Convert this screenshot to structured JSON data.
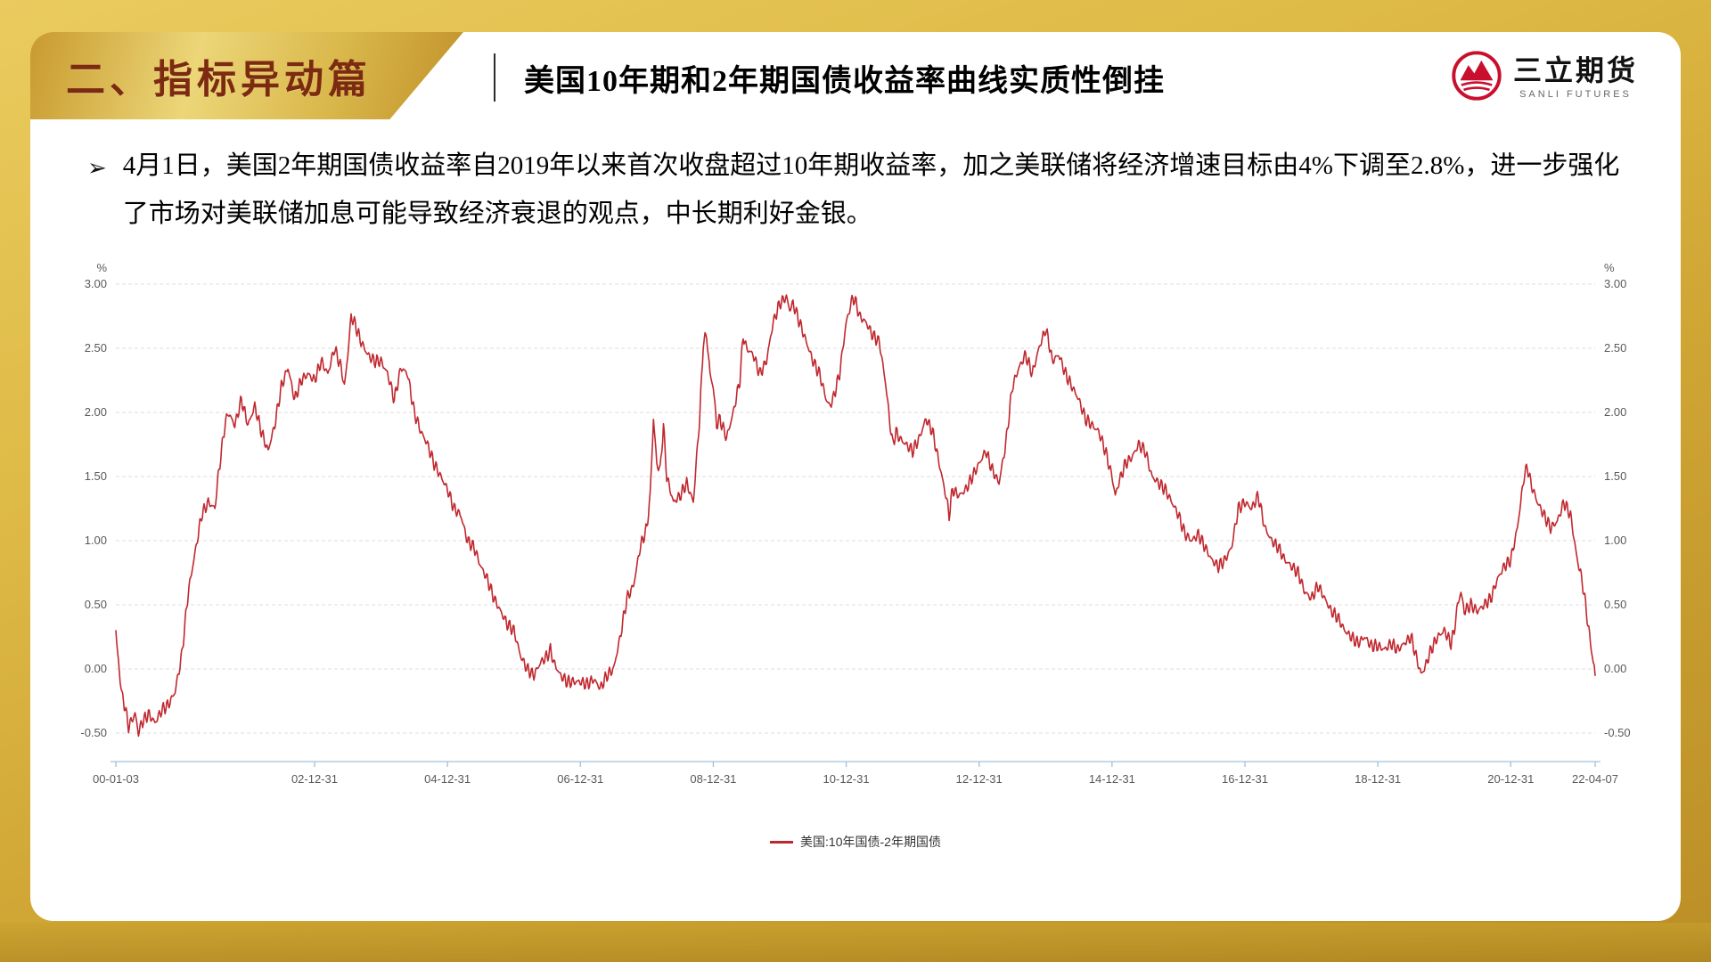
{
  "slide": {
    "section_label": "二、指标异动篇",
    "title": "美国10年期和2年期国债收益率曲线实质性倒挂",
    "logo": {
      "name": "三立期货",
      "subtitle": "SANLI FUTURES"
    },
    "bullet_marker": "➢",
    "bullet": "4月1日，美国2年期国债收益率自2019年以来首次收盘超过10年期收益率，加之美联储将经济增速目标由4%下调至2.8%，进一步强化了市场对美联储加息可能导致经济衰退的观点，中长期利好金银。"
  },
  "chart_data": {
    "type": "line",
    "unit": "%",
    "legend": "美国:10年国债-2年期国债",
    "line_color": "#c0282f",
    "grid": "horizontal-dashed",
    "legend_position": "bottom-center",
    "ylim": [
      -0.5,
      3.0
    ],
    "yticks": [
      3.0,
      2.5,
      2.0,
      1.5,
      1.0,
      0.5,
      0.0,
      -0.5
    ],
    "x_start": 2000.01,
    "x_end": 2022.27,
    "xticks": [
      {
        "label": "00-01-03",
        "t": 2000.01
      },
      {
        "label": "02-12-31",
        "t": 2003.0
      },
      {
        "label": "04-12-31",
        "t": 2005.0
      },
      {
        "label": "06-12-31",
        "t": 2007.0
      },
      {
        "label": "08-12-31",
        "t": 2009.0
      },
      {
        "label": "10-12-31",
        "t": 2011.0
      },
      {
        "label": "12-12-31",
        "t": 2013.0
      },
      {
        "label": "14-12-31",
        "t": 2015.0
      },
      {
        "label": "16-12-31",
        "t": 2017.0
      },
      {
        "label": "18-12-31",
        "t": 2019.0
      },
      {
        "label": "20-12-31",
        "t": 2021.0
      },
      {
        "label": "22-04-07",
        "t": 2022.27
      }
    ],
    "points": [
      [
        2000.01,
        0.28
      ],
      [
        2000.05,
        0.05
      ],
      [
        2000.1,
        -0.2
      ],
      [
        2000.15,
        -0.3
      ],
      [
        2000.2,
        -0.45
      ],
      [
        2000.25,
        -0.4
      ],
      [
        2000.3,
        -0.35
      ],
      [
        2000.35,
        -0.5
      ],
      [
        2000.4,
        -0.42
      ],
      [
        2000.5,
        -0.35
      ],
      [
        2000.6,
        -0.42
      ],
      [
        2000.7,
        -0.32
      ],
      [
        2000.8,
        -0.28
      ],
      [
        2000.9,
        -0.18
      ],
      [
        2001.0,
        0.1
      ],
      [
        2001.1,
        0.6
      ],
      [
        2001.2,
        0.9
      ],
      [
        2001.3,
        1.2
      ],
      [
        2001.4,
        1.3
      ],
      [
        2001.5,
        1.25
      ],
      [
        2001.55,
        1.5
      ],
      [
        2001.6,
        1.7
      ],
      [
        2001.65,
        1.9
      ],
      [
        2001.7,
        2.0
      ],
      [
        2001.8,
        1.9
      ],
      [
        2001.9,
        2.1
      ],
      [
        2002.0,
        1.9
      ],
      [
        2002.1,
        2.05
      ],
      [
        2002.2,
        1.85
      ],
      [
        2002.3,
        1.7
      ],
      [
        2002.4,
        1.9
      ],
      [
        2002.5,
        2.2
      ],
      [
        2002.6,
        2.35
      ],
      [
        2002.7,
        2.1
      ],
      [
        2002.8,
        2.25
      ],
      [
        2002.9,
        2.3
      ],
      [
        2003.0,
        2.25
      ],
      [
        2003.1,
        2.4
      ],
      [
        2003.2,
        2.3
      ],
      [
        2003.3,
        2.5
      ],
      [
        2003.4,
        2.35
      ],
      [
        2003.45,
        2.2
      ],
      [
        2003.5,
        2.45
      ],
      [
        2003.55,
        2.75
      ],
      [
        2003.6,
        2.7
      ],
      [
        2003.7,
        2.55
      ],
      [
        2003.8,
        2.45
      ],
      [
        2003.9,
        2.4
      ],
      [
        2004.0,
        2.4
      ],
      [
        2004.1,
        2.3
      ],
      [
        2004.2,
        2.1
      ],
      [
        2004.3,
        2.35
      ],
      [
        2004.4,
        2.3
      ],
      [
        2004.5,
        2.0
      ],
      [
        2004.6,
        1.85
      ],
      [
        2004.7,
        1.75
      ],
      [
        2004.8,
        1.6
      ],
      [
        2004.9,
        1.5
      ],
      [
        2005.0,
        1.4
      ],
      [
        2005.1,
        1.25
      ],
      [
        2005.2,
        1.2
      ],
      [
        2005.3,
        1.0
      ],
      [
        2005.4,
        0.95
      ],
      [
        2005.5,
        0.8
      ],
      [
        2005.6,
        0.7
      ],
      [
        2005.7,
        0.55
      ],
      [
        2005.8,
        0.45
      ],
      [
        2005.9,
        0.35
      ],
      [
        2006.0,
        0.3
      ],
      [
        2006.1,
        0.1
      ],
      [
        2006.2,
        0.0
      ],
      [
        2006.3,
        -0.05
      ],
      [
        2006.4,
        0.05
      ],
      [
        2006.5,
        0.1
      ],
      [
        2006.55,
        0.15
      ],
      [
        2006.6,
        0.05
      ],
      [
        2006.7,
        -0.05
      ],
      [
        2006.8,
        -0.1
      ],
      [
        2006.9,
        -0.1
      ],
      [
        2007.0,
        -0.1
      ],
      [
        2007.1,
        -0.12
      ],
      [
        2007.2,
        -0.08
      ],
      [
        2007.3,
        -0.15
      ],
      [
        2007.4,
        -0.05
      ],
      [
        2007.5,
        0.0
      ],
      [
        2007.6,
        0.25
      ],
      [
        2007.7,
        0.55
      ],
      [
        2007.75,
        0.6
      ],
      [
        2007.8,
        0.65
      ],
      [
        2007.9,
        0.95
      ],
      [
        2008.0,
        1.1
      ],
      [
        2008.05,
        1.35
      ],
      [
        2008.1,
        1.95
      ],
      [
        2008.15,
        1.6
      ],
      [
        2008.2,
        1.55
      ],
      [
        2008.25,
        1.9
      ],
      [
        2008.3,
        1.5
      ],
      [
        2008.4,
        1.3
      ],
      [
        2008.5,
        1.35
      ],
      [
        2008.6,
        1.45
      ],
      [
        2008.7,
        1.3
      ],
      [
        2008.75,
        1.65
      ],
      [
        2008.8,
        2.0
      ],
      [
        2008.85,
        2.55
      ],
      [
        2008.9,
        2.6
      ],
      [
        2008.95,
        2.3
      ],
      [
        2009.0,
        2.2
      ],
      [
        2009.05,
        1.9
      ],
      [
        2009.1,
        1.95
      ],
      [
        2009.2,
        1.8
      ],
      [
        2009.3,
        2.0
      ],
      [
        2009.4,
        2.25
      ],
      [
        2009.45,
        2.6
      ],
      [
        2009.5,
        2.5
      ],
      [
        2009.6,
        2.45
      ],
      [
        2009.7,
        2.3
      ],
      [
        2009.8,
        2.4
      ],
      [
        2009.9,
        2.7
      ],
      [
        2010.0,
        2.85
      ],
      [
        2010.1,
        2.9
      ],
      [
        2010.15,
        2.8
      ],
      [
        2010.2,
        2.85
      ],
      [
        2010.3,
        2.7
      ],
      [
        2010.4,
        2.55
      ],
      [
        2010.5,
        2.4
      ],
      [
        2010.6,
        2.3
      ],
      [
        2010.7,
        2.1
      ],
      [
        2010.75,
        2.05
      ],
      [
        2010.8,
        2.1
      ],
      [
        2010.9,
        2.3
      ],
      [
        2011.0,
        2.7
      ],
      [
        2011.1,
        2.9
      ],
      [
        2011.15,
        2.85
      ],
      [
        2011.2,
        2.75
      ],
      [
        2011.3,
        2.7
      ],
      [
        2011.4,
        2.6
      ],
      [
        2011.5,
        2.55
      ],
      [
        2011.6,
        2.2
      ],
      [
        2011.65,
        1.95
      ],
      [
        2011.7,
        1.75
      ],
      [
        2011.75,
        1.85
      ],
      [
        2011.8,
        1.8
      ],
      [
        2011.9,
        1.75
      ],
      [
        2012.0,
        1.7
      ],
      [
        2012.1,
        1.8
      ],
      [
        2012.2,
        1.95
      ],
      [
        2012.3,
        1.85
      ],
      [
        2012.4,
        1.6
      ],
      [
        2012.5,
        1.35
      ],
      [
        2012.55,
        1.2
      ],
      [
        2012.6,
        1.4
      ],
      [
        2012.7,
        1.35
      ],
      [
        2012.8,
        1.4
      ],
      [
        2012.9,
        1.5
      ],
      [
        2013.0,
        1.6
      ],
      [
        2013.1,
        1.7
      ],
      [
        2013.2,
        1.55
      ],
      [
        2013.3,
        1.45
      ],
      [
        2013.4,
        1.75
      ],
      [
        2013.5,
        2.2
      ],
      [
        2013.6,
        2.35
      ],
      [
        2013.7,
        2.45
      ],
      [
        2013.8,
        2.3
      ],
      [
        2013.9,
        2.5
      ],
      [
        2014.0,
        2.65
      ],
      [
        2014.05,
        2.55
      ],
      [
        2014.1,
        2.4
      ],
      [
        2014.2,
        2.45
      ],
      [
        2014.3,
        2.3
      ],
      [
        2014.4,
        2.2
      ],
      [
        2014.5,
        2.1
      ],
      [
        2014.6,
        1.95
      ],
      [
        2014.7,
        1.9
      ],
      [
        2014.8,
        1.85
      ],
      [
        2014.9,
        1.7
      ],
      [
        2015.0,
        1.5
      ],
      [
        2015.05,
        1.35
      ],
      [
        2015.1,
        1.45
      ],
      [
        2015.2,
        1.6
      ],
      [
        2015.3,
        1.65
      ],
      [
        2015.4,
        1.75
      ],
      [
        2015.5,
        1.7
      ],
      [
        2015.6,
        1.5
      ],
      [
        2015.7,
        1.45
      ],
      [
        2015.8,
        1.4
      ],
      [
        2015.9,
        1.3
      ],
      [
        2016.0,
        1.2
      ],
      [
        2016.1,
        1.05
      ],
      [
        2016.2,
        1.0
      ],
      [
        2016.3,
        1.05
      ],
      [
        2016.4,
        0.95
      ],
      [
        2016.5,
        0.85
      ],
      [
        2016.6,
        0.8
      ],
      [
        2016.7,
        0.85
      ],
      [
        2016.8,
        0.95
      ],
      [
        2016.9,
        1.25
      ],
      [
        2017.0,
        1.3
      ],
      [
        2017.1,
        1.25
      ],
      [
        2017.2,
        1.35
      ],
      [
        2017.3,
        1.1
      ],
      [
        2017.4,
        1.0
      ],
      [
        2017.5,
        0.95
      ],
      [
        2017.6,
        0.85
      ],
      [
        2017.7,
        0.8
      ],
      [
        2017.8,
        0.75
      ],
      [
        2017.9,
        0.6
      ],
      [
        2018.0,
        0.55
      ],
      [
        2018.1,
        0.65
      ],
      [
        2018.2,
        0.55
      ],
      [
        2018.3,
        0.45
      ],
      [
        2018.4,
        0.4
      ],
      [
        2018.5,
        0.3
      ],
      [
        2018.6,
        0.25
      ],
      [
        2018.7,
        0.2
      ],
      [
        2018.8,
        0.25
      ],
      [
        2018.9,
        0.18
      ],
      [
        2019.0,
        0.18
      ],
      [
        2019.1,
        0.15
      ],
      [
        2019.2,
        0.2
      ],
      [
        2019.3,
        0.15
      ],
      [
        2019.4,
        0.2
      ],
      [
        2019.5,
        0.25
      ],
      [
        2019.6,
        0.05
      ],
      [
        2019.65,
        -0.04
      ],
      [
        2019.7,
        0.0
      ],
      [
        2019.8,
        0.15
      ],
      [
        2019.9,
        0.25
      ],
      [
        2020.0,
        0.3
      ],
      [
        2020.1,
        0.2
      ],
      [
        2020.15,
        0.3
      ],
      [
        2020.2,
        0.5
      ],
      [
        2020.25,
        0.6
      ],
      [
        2020.3,
        0.45
      ],
      [
        2020.4,
        0.5
      ],
      [
        2020.5,
        0.45
      ],
      [
        2020.6,
        0.5
      ],
      [
        2020.7,
        0.55
      ],
      [
        2020.8,
        0.7
      ],
      [
        2020.9,
        0.8
      ],
      [
        2021.0,
        0.85
      ],
      [
        2021.1,
        1.1
      ],
      [
        2021.2,
        1.5
      ],
      [
        2021.25,
        1.58
      ],
      [
        2021.3,
        1.45
      ],
      [
        2021.4,
        1.3
      ],
      [
        2021.5,
        1.2
      ],
      [
        2021.6,
        1.1
      ],
      [
        2021.7,
        1.15
      ],
      [
        2021.8,
        1.3
      ],
      [
        2021.9,
        1.2
      ],
      [
        2022.0,
        0.85
      ],
      [
        2022.05,
        0.75
      ],
      [
        2022.1,
        0.6
      ],
      [
        2022.15,
        0.4
      ],
      [
        2022.2,
        0.2
      ],
      [
        2022.24,
        0.05
      ],
      [
        2022.27,
        -0.05
      ]
    ]
  }
}
